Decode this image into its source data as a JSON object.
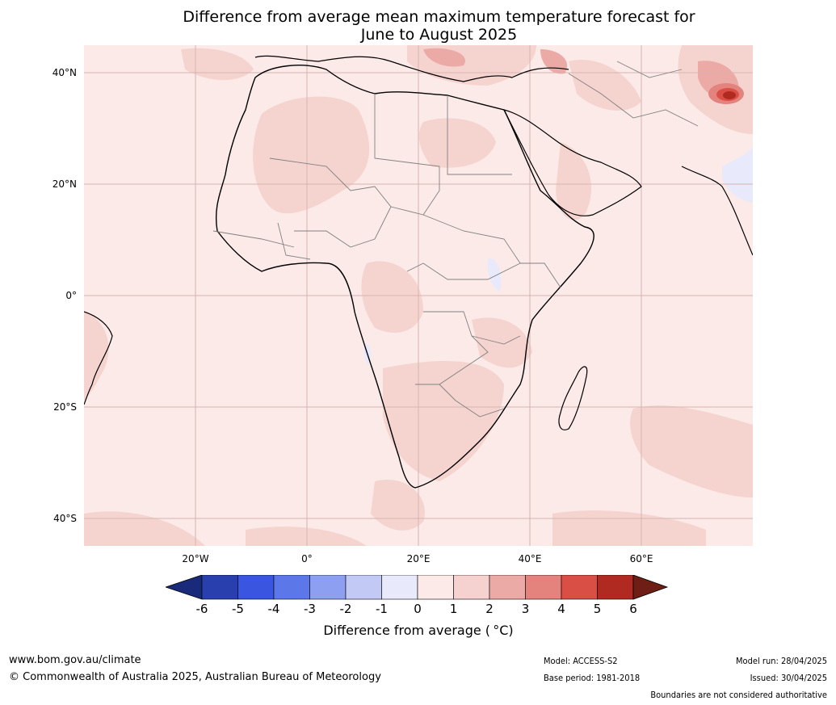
{
  "title_line1": "Difference from average mean maximum temperature forecast for",
  "title_line2": "June to August 2025",
  "lat_labels": [
    "40°N",
    "20°N",
    "0°",
    "20°S",
    "40°S"
  ],
  "lon_labels": [
    "20°W",
    "0°",
    "20°E",
    "40°E",
    "60°E"
  ],
  "colorbar": {
    "ticks": [
      "-6",
      "-5",
      "-4",
      "-3",
      "-2",
      "-1",
      "0",
      "1",
      "2",
      "3",
      "4",
      "5",
      "6"
    ],
    "label": "Difference from average ( °C)",
    "colors": [
      "#1a2a7a",
      "#2a3fae",
      "#3a55e0",
      "#5c78e8",
      "#8c9ff0",
      "#c2c9f5",
      "#e8eafb",
      "#fbeae8",
      "#f5d2cf",
      "#ecaaa6",
      "#e4837d",
      "#d94f45",
      "#b02a22",
      "#6e1e14"
    ]
  },
  "footer": {
    "url": "www.bom.gov.au/climate",
    "copyright": "© Commonwealth of Australia 2025, Australian Bureau of Meteorology",
    "model": "Model: ACCESS-S2",
    "base_period": "Base period: 1981-2018",
    "model_run": "Model run: 28/04/2025",
    "issued": "Issued: 30/04/2025",
    "disclaimer": "Boundaries are not considered authoritative"
  }
}
